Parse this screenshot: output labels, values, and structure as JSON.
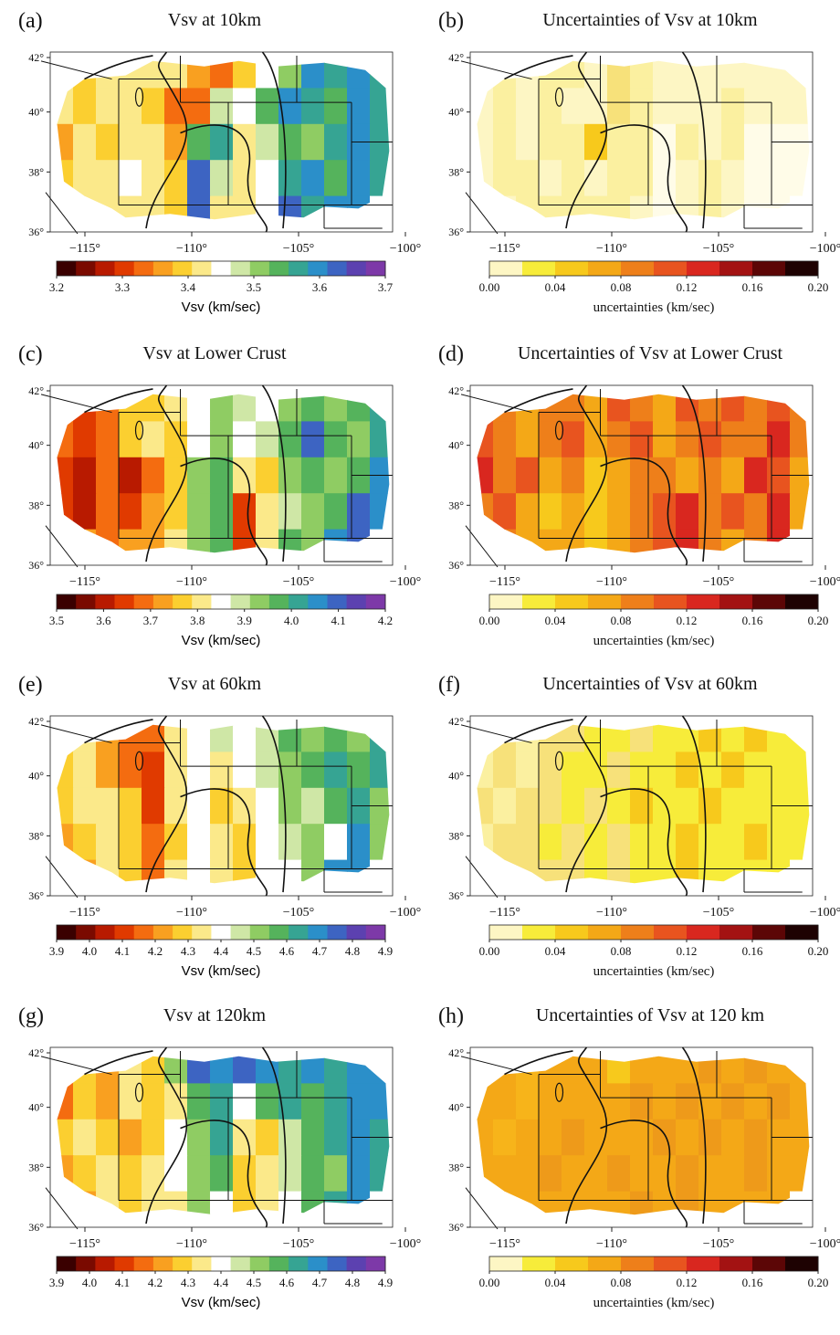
{
  "lat_labels": [
    "42°",
    "40°",
    "38°",
    "36°"
  ],
  "lon_labels": [
    "−115°",
    "−110°",
    "−105°",
    "−100°"
  ],
  "colormaps": {
    "velocity": [
      "#3a0000",
      "#7a0a00",
      "#b81a00",
      "#e03a00",
      "#f46c10",
      "#f9a020",
      "#fbcf30",
      "#fbe98a",
      "#ffffff",
      "#cfe7a6",
      "#8fcc63",
      "#55b35c",
      "#36a493",
      "#2b8fc9",
      "#3d64c2",
      "#5c41b0",
      "#7d39a8"
    ],
    "uncertainty": [
      "#fdf6c4",
      "#f7ec3a",
      "#f7c91c",
      "#f4a817",
      "#ee7f1a",
      "#e8541f",
      "#d9271f",
      "#a31212",
      "#5c0606",
      "#1e0202"
    ]
  },
  "panels": [
    {
      "id": "a",
      "letter": "(a)",
      "title": "Vsv at 10km",
      "cmap": "velocity",
      "colorbar": {
        "ticks": [
          "3.2",
          "3.3",
          "3.4",
          "3.5",
          "3.6",
          "3.7"
        ],
        "label": "Vsv (km/sec)"
      },
      "field": [
        [
          "",
          "",
          "",
          "",
          "#fbe98a",
          "#fbe98a",
          "#f9a020",
          "#f46c10",
          "#fbcf30",
          "#ffffff",
          "#8fcc63",
          "#2b8fc9",
          "#36a493",
          "#2b8fc9",
          ""
        ],
        [
          "#fbe98a",
          "#fbcf30",
          "#fbe98a",
          "#fbe98a",
          "#fbcf30",
          "#f46c10",
          "#f46c10",
          "#cfe7a6",
          "#ffffff",
          "#55b35c",
          "#2b8fc9",
          "#36a493",
          "#55b35c",
          "#2b8fc9",
          "#36a493"
        ],
        [
          "#f9a020",
          "#fbe98a",
          "#fbcf30",
          "#fbe98a",
          "#fbe98a",
          "#f9a020",
          "#55b35c",
          "#36a493",
          "#fbe98a",
          "#cfe7a6",
          "#55b35c",
          "#8fcc63",
          "#36a493",
          "#2b8fc9",
          "#36a493"
        ],
        [
          "#fbcf30",
          "#fbe98a",
          "#fbe98a",
          "#ffffff",
          "#fbe98a",
          "#fbcf30",
          "#3d64c2",
          "#cfe7a6",
          "#fbe98a",
          "#ffffff",
          "#36a493",
          "#2b8fc9",
          "#55b35c",
          "#2b8fc9",
          ""
        ],
        [
          "",
          "#fbe98a",
          "",
          "#fbe98a",
          "",
          "#fbcf30",
          "#3d64c2",
          "#fbe98a",
          "",
          "",
          "#3d64c2",
          "#36a493",
          "#2b8fc9",
          "",
          ""
        ]
      ]
    },
    {
      "id": "b",
      "letter": "(b)",
      "title": "Uncertainties of Vsv at 10km",
      "cmap": "uncertainty",
      "colorbar": {
        "ticks": [
          "0.00",
          "0.04",
          "0.08",
          "0.12",
          "0.16",
          "0.20"
        ],
        "label": "uncertainties (km/sec)"
      },
      "field": [
        [
          "",
          "",
          "",
          "",
          "#fbf0a0",
          "#fdf6c4",
          "#f7e17a",
          "#fbf0a0",
          "#fdf6c4",
          "#fdf6c4",
          "#fdf6c4",
          "#fdf6c4",
          "#fdf6c4",
          "#fdf6c4",
          ""
        ],
        [
          "#fdf6c4",
          "#fbf0a0",
          "#fdf6c4",
          "#fbf0a0",
          "#fdf6c4",
          "#fdf6c4",
          "#f7e17a",
          "#fbf0a0",
          "#fdf6c4",
          "#fdf6c4",
          "#fdf6c4",
          "#fbf0a0",
          "#fdf6c4",
          "#fdf6c4",
          "#fdf6c4"
        ],
        [
          "#fdf6c4",
          "#fbf0a0",
          "#fdf6c4",
          "#fbf0a0",
          "#fbf0a0",
          "#f7c91c",
          "#fbf0a0",
          "#fbf0a0",
          "#fffce8",
          "#fbf0a0",
          "#fdf6c4",
          "#fbf0a0",
          "#fffce8",
          "#fffce8",
          "#fffce8"
        ],
        [
          "#fdf6c4",
          "#fbf0a0",
          "#fbf0a0",
          "#fdf6c4",
          "#fbf0a0",
          "#fdf6c4",
          "#fbf0a0",
          "#fbf0a0",
          "#fffce8",
          "#fdf6c4",
          "#fbf0a0",
          "#fdf6c4",
          "#fffce8",
          "#fffce8",
          ""
        ],
        [
          "",
          "#fdf6c4",
          "",
          "#fbf0a0",
          "",
          "#fbf0a0",
          "#fbf0a0",
          "#fdf6c4",
          "",
          "",
          "#fbf0a0",
          "#fdf6c4",
          "#fffce8",
          "",
          ""
        ]
      ]
    },
    {
      "id": "c",
      "letter": "(c)",
      "title": "Vsv at Lower Crust",
      "cmap": "velocity",
      "colorbar": {
        "ticks": [
          "3.5",
          "3.6",
          "3.7",
          "3.8",
          "3.9",
          "4.0",
          "4.1",
          "4.2"
        ],
        "label": "Vsv (km/sec)"
      },
      "field": [
        [
          "",
          "",
          "",
          "",
          "#fbcf30",
          "#fbe98a",
          "#ffffff",
          "#8fcc63",
          "#cfe7a6",
          "#ffffff",
          "#8fcc63",
          "#55b35c",
          "#8fcc63",
          "#55b35c",
          ""
        ],
        [
          "#f46c10",
          "#e03a00",
          "#f46c10",
          "#fbcf30",
          "#fbe98a",
          "#fbcf30",
          "#ffffff",
          "#8fcc63",
          "#ffffff",
          "#cfe7a6",
          "#55b35c",
          "#3d64c2",
          "#55b35c",
          "#8fcc63",
          "#36a493"
        ],
        [
          "#e03a00",
          "#b81a00",
          "#f46c10",
          "#b81a00",
          "#f46c10",
          "#fbcf30",
          "#8fcc63",
          "#55b35c",
          "#fbe98a",
          "#fbcf30",
          "#8fcc63",
          "#55b35c",
          "#8fcc63",
          "#55b35c",
          "#2b8fc9"
        ],
        [
          "#e03a00",
          "#b81a00",
          "#f46c10",
          "#e03a00",
          "#f9a020",
          "#fbcf30",
          "#8fcc63",
          "#55b35c",
          "#e03a00",
          "#fbe98a",
          "#cfe7a6",
          "#8fcc63",
          "#55b35c",
          "#3d64c2",
          ""
        ],
        [
          "",
          "#f9a020",
          "",
          "#f9a020",
          "",
          "#fbe98a",
          "#8fcc63",
          "#55b35c",
          "",
          "",
          "#55b35c",
          "#8fcc63",
          "#2b8fc9",
          "",
          ""
        ]
      ]
    },
    {
      "id": "d",
      "letter": "(d)",
      "title": "Uncertainties of Vsv at Lower Crust",
      "cmap": "uncertainty",
      "colorbar": {
        "ticks": [
          "0.00",
          "0.04",
          "0.08",
          "0.12",
          "0.16",
          "0.20"
        ],
        "label": "uncertainties (km/sec)"
      },
      "field": [
        [
          "",
          "",
          "",
          "",
          "#ee7f1a",
          "#f4a817",
          "#e8541f",
          "#ee7f1a",
          "#f4a817",
          "#e8541f",
          "#ee7f1a",
          "#e8541f",
          "#ee7f1a",
          "#e8541f",
          ""
        ],
        [
          "#e8541f",
          "#ee7f1a",
          "#f4a817",
          "#ee7f1a",
          "#e8541f",
          "#f4a817",
          "#ee7f1a",
          "#e8541f",
          "#f4a817",
          "#ee7f1a",
          "#e8541f",
          "#ee7f1a",
          "#ee7f1a",
          "#d9271f",
          "#ee7f1a"
        ],
        [
          "#d9271f",
          "#ee7f1a",
          "#e8541f",
          "#f4a817",
          "#ee7f1a",
          "#f7c91c",
          "#f4a817",
          "#ee7f1a",
          "#ee7f1a",
          "#f4a817",
          "#ee7f1a",
          "#f4a817",
          "#d9271f",
          "#e8541f",
          "#f4a817"
        ],
        [
          "#ee7f1a",
          "#e8541f",
          "#f4a817",
          "#f7c91c",
          "#f4a817",
          "#f7c91c",
          "#f4a817",
          "#ee7f1a",
          "#e8541f",
          "#d9271f",
          "#ee7f1a",
          "#e8541f",
          "#ee7f1a",
          "#d9271f",
          ""
        ],
        [
          "",
          "#ee7f1a",
          "",
          "#f4a817",
          "",
          "#f7c91c",
          "#f4a817",
          "#ee7f1a",
          "",
          "",
          "#ee7f1a",
          "#f4a817",
          "#ee7f1a",
          "",
          ""
        ]
      ]
    },
    {
      "id": "e",
      "letter": "(e)",
      "title": "Vsv at 60km",
      "cmap": "velocity",
      "colorbar": {
        "ticks": [
          "3.9",
          "4.0",
          "4.1",
          "4.2",
          "4.3",
          "4.4",
          "4.5",
          "4.6",
          "4.7",
          "4.8",
          "4.9"
        ],
        "label": "Vsv (km/sec)"
      },
      "field": [
        [
          "",
          "",
          "",
          "",
          "#f46c10",
          "#fbe98a",
          "#ffffff",
          "#cfe7a6",
          "#ffffff",
          "#cfe7a6",
          "#55b35c",
          "#8fcc63",
          "#55b35c",
          "#8fcc63",
          ""
        ],
        [
          "#fbcf30",
          "#fbe98a",
          "#f9a020",
          "#f46c10",
          "#e03a00",
          "#fbe98a",
          "#ffffff",
          "#fbe98a",
          "#ffffff",
          "#cfe7a6",
          "#8fcc63",
          "#55b35c",
          "#36a493",
          "#55b35c",
          "#36a493"
        ],
        [
          "#fbcf30",
          "#fbe98a",
          "#fbe98a",
          "#fbcf30",
          "#e03a00",
          "#fbe98a",
          "#ffffff",
          "#fbcf30",
          "#fbe98a",
          "#ffffff",
          "#8fcc63",
          "#cfe7a6",
          "#55b35c",
          "#36a493",
          "#8fcc63"
        ],
        [
          "#f9a020",
          "#fbcf30",
          "#fbe98a",
          "#fbcf30",
          "#f46c10",
          "#fbcf30",
          "#ffffff",
          "#fbe98a",
          "#fbcf30",
          "#ffffff",
          "#cfe7a6",
          "#8fcc63",
          "#ffffff",
          "#2b8fc9",
          ""
        ],
        [
          "",
          "#f9a020",
          "",
          "#fbcf30",
          "",
          "#fbe98a",
          "#ffffff",
          "#fbe98a",
          "",
          "",
          "#ffffff",
          "#8fcc63",
          "#2b8fc9",
          "",
          ""
        ]
      ]
    },
    {
      "id": "f",
      "letter": "(f)",
      "title": "Uncertainties of Vsv at 60km",
      "cmap": "uncertainty",
      "colorbar": {
        "ticks": [
          "0.00",
          "0.04",
          "0.08",
          "0.12",
          "0.16",
          "0.20"
        ],
        "label": "uncertainties (km/sec)"
      },
      "field": [
        [
          "",
          "",
          "",
          "",
          "#f7e17a",
          "#f7ec3a",
          "#f7ec3a",
          "#f7e17a",
          "#f7ec3a",
          "#f7ec3a",
          "#f7c91c",
          "#f7ec3a",
          "#f7c91c",
          "#f7ec3a",
          ""
        ],
        [
          "#fbf0a0",
          "#f7e17a",
          "#fbf0a0",
          "#f7e17a",
          "#f7ec3a",
          "#f7ec3a",
          "#f7e17a",
          "#f7ec3a",
          "#f7ec3a",
          "#f7c91c",
          "#f7ec3a",
          "#f7c91c",
          "#f7ec3a",
          "#f7ec3a",
          "#f7ec3a"
        ],
        [
          "#f7e17a",
          "#fbf0a0",
          "#f7e17a",
          "#f7e17a",
          "#f7ec3a",
          "#f7e17a",
          "#f7ec3a",
          "#f7c91c",
          "#f7ec3a",
          "#f7ec3a",
          "#f7c91c",
          "#f7ec3a",
          "#f7ec3a",
          "#f7ec3a",
          "#f7ec3a"
        ],
        [
          "#fbf0a0",
          "#f7e17a",
          "#f7e17a",
          "#f7ec3a",
          "#f7e17a",
          "#f7ec3a",
          "#f7e17a",
          "#f7ec3a",
          "#f7ec3a",
          "#f7c91c",
          "#f7ec3a",
          "#f7ec3a",
          "#f7c91c",
          "#f7ec3a",
          ""
        ],
        [
          "",
          "#f7e17a",
          "",
          "#f7e17a",
          "",
          "#f7ec3a",
          "#f7e17a",
          "#f7ec3a",
          "",
          "",
          "#f7ec3a",
          "#f7ec3a",
          "#f7ec3a",
          "",
          ""
        ]
      ]
    },
    {
      "id": "g",
      "letter": "(g)",
      "title": "Vsv at 120km",
      "cmap": "velocity",
      "colorbar": {
        "ticks": [
          "3.9",
          "4.0",
          "4.1",
          "4.2",
          "4.3",
          "4.4",
          "4.5",
          "4.6",
          "4.7",
          "4.8",
          "4.9"
        ],
        "label": "Vsv (km/sec)"
      },
      "field": [
        [
          "",
          "",
          "",
          "",
          "#fbcf30",
          "#8fcc63",
          "#3d64c2",
          "#2b8fc9",
          "#3d64c2",
          "#2b8fc9",
          "#36a493",
          "#2b8fc9",
          "#36a493",
          "#2b8fc9",
          ""
        ],
        [
          "#f46c10",
          "#fbcf30",
          "#f9a020",
          "#fbe98a",
          "#fbcf30",
          "#fbe98a",
          "#55b35c",
          "#36a493",
          "#ffffff",
          "#55b35c",
          "#36a493",
          "#55b35c",
          "#36a493",
          "#2b8fc9",
          "#2b8fc9"
        ],
        [
          "#fbcf30",
          "#fbe98a",
          "#fbcf30",
          "#f9a020",
          "#fbcf30",
          "#ffffff",
          "#8fcc63",
          "#36a493",
          "#fbe98a",
          "#fbcf30",
          "#cfe7a6",
          "#55b35c",
          "#36a493",
          "#2b8fc9",
          "#36a493"
        ],
        [
          "#f9a020",
          "#fbcf30",
          "#fbe98a",
          "#fbcf30",
          "#fbe98a",
          "#ffffff",
          "#8fcc63",
          "#55b35c",
          "#fbcf30",
          "#fbe98a",
          "#cfe7a6",
          "#55b35c",
          "#8fcc63",
          "#2b8fc9",
          ""
        ],
        [
          "",
          "#f9a020",
          "",
          "#fbcf30",
          "",
          "#fbe98a",
          "#8fcc63",
          "#ffffff",
          "",
          "",
          "#ffffff",
          "#55b35c",
          "#36a493",
          "",
          ""
        ]
      ]
    },
    {
      "id": "h",
      "letter": "(h)",
      "title": "Uncertainties of Vsv at 120 km",
      "cmap": "uncertainty",
      "colorbar": {
        "ticks": [
          "0.00",
          "0.04",
          "0.08",
          "0.12",
          "0.16",
          "0.20"
        ],
        "label": "uncertainties (km/sec)"
      },
      "field": [
        [
          "",
          "",
          "",
          "",
          "#f4a817",
          "#f4a817",
          "#f7c91c",
          "#f4a817",
          "#f4a817",
          "#f4a817",
          "#ee9a1a",
          "#f4a817",
          "#ee9a1a",
          "#f4a817",
          ""
        ],
        [
          "#f4a817",
          "#f4a817",
          "#f7b41a",
          "#f4a817",
          "#f4a817",
          "#f4a817",
          "#f4a817",
          "#ee9a1a",
          "#f4a817",
          "#ee9a1a",
          "#f4a817",
          "#ee9a1a",
          "#f4a817",
          "#ee9a1a",
          "#f4a817"
        ],
        [
          "#f4a817",
          "#f7b41a",
          "#f4a817",
          "#f4a817",
          "#ee9a1a",
          "#f4a817",
          "#f4a817",
          "#f4a817",
          "#ee9a1a",
          "#f4a817",
          "#ee9a1a",
          "#f4a817",
          "#ee9a1a",
          "#f4a817",
          "#f4a817"
        ],
        [
          "#f4a817",
          "#f4a817",
          "#f4a817",
          "#ee9a1a",
          "#f4a817",
          "#f4a817",
          "#ee9a1a",
          "#f4a817",
          "#f4a817",
          "#ee9a1a",
          "#f4a817",
          "#f4a817",
          "#ee9a1a",
          "#f4a817",
          ""
        ],
        [
          "",
          "#f4a817",
          "",
          "#f4a817",
          "",
          "#f4a817",
          "#f4a817",
          "#ee9a1a",
          "",
          "",
          "#f4a817",
          "#f4a817",
          "#f4a817",
          "",
          ""
        ]
      ]
    }
  ]
}
